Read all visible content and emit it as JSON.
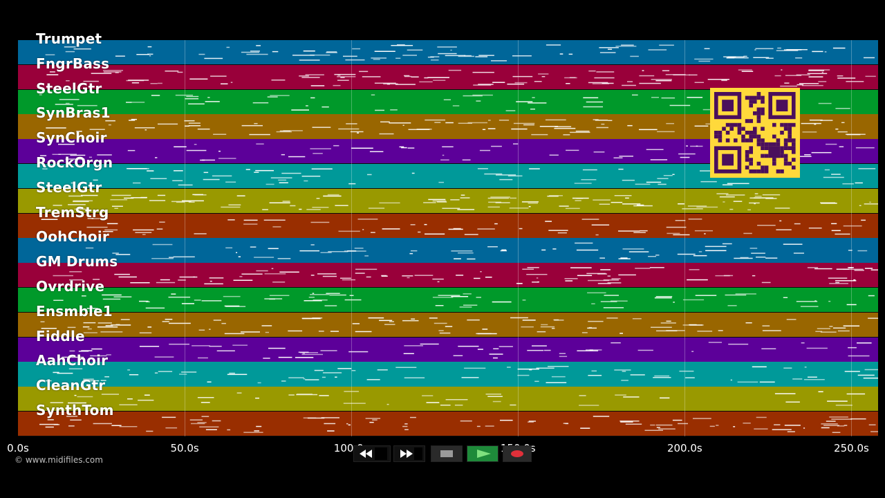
{
  "tracks": [
    {
      "name": "Trumpet",
      "color": "#006699"
    },
    {
      "name": "FngrBass",
      "color": "#99003a"
    },
    {
      "name": "SteelGtr",
      "color": "#00992a"
    },
    {
      "name": "SynBras1",
      "color": "#996600"
    },
    {
      "name": "SynChoir",
      "color": "#5c0099"
    },
    {
      "name": "RockOrgn",
      "color": "#009999"
    },
    {
      "name": "SteelGtr",
      "color": "#999900"
    },
    {
      "name": "TremStrg",
      "color": "#992e00"
    },
    {
      "name": "OohChoir",
      "color": "#006699"
    },
    {
      "name": "GM Drums",
      "color": "#99003a"
    },
    {
      "name": "Ovrdrive",
      "color": "#00992a"
    },
    {
      "name": "Ensmble1",
      "color": "#996600"
    },
    {
      "name": "Fiddle",
      "color": "#5c0099"
    },
    {
      "name": "AahChoir",
      "color": "#009999"
    },
    {
      "name": "CleanGtr",
      "color": "#999900"
    },
    {
      "name": "SynthTom",
      "color": "#992e00"
    }
  ],
  "timeline": {
    "max_seconds": 258,
    "ticks": [
      {
        "seconds": 0,
        "label": "0.0s"
      },
      {
        "seconds": 50,
        "label": "50.0s"
      },
      {
        "seconds": 100,
        "label": "100.0s"
      },
      {
        "seconds": 150,
        "label": "150.0s"
      },
      {
        "seconds": 200,
        "label": "200.0s"
      },
      {
        "seconds": 250,
        "label": "250.0s"
      }
    ]
  },
  "copyright": "© www.midifiles.com",
  "controls": [
    {
      "name": "rewind",
      "icon": "rewind-icon"
    },
    {
      "name": "fast-forward",
      "icon": "fast-forward-icon"
    },
    {
      "name": "stop",
      "icon": "stop-icon"
    },
    {
      "name": "play",
      "icon": "play-icon"
    },
    {
      "name": "record",
      "icon": "record-icon"
    }
  ],
  "colors": {
    "background": "#000000",
    "qr_background": "#ffd93b",
    "qr_foreground": "#4a0f5c",
    "play_button": "#1e8a3a",
    "record_dot": "#e0303a",
    "note": "#ffffff"
  }
}
